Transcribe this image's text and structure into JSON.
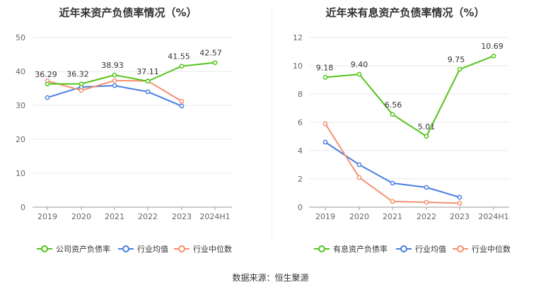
{
  "source_text": "数据来源：恒生聚源",
  "chart_data": [
    {
      "type": "line",
      "title": "近年来资产负债率情况（%）",
      "categories": [
        "2019",
        "2020",
        "2021",
        "2022",
        "2023",
        "2024H1"
      ],
      "ylim": [
        0,
        50
      ],
      "yticks": [
        "0",
        "10",
        "20",
        "30",
        "40",
        "50"
      ],
      "grid": true,
      "legend_position": "bottom",
      "series": [
        {
          "name": "公司资产负债率",
          "color": "#52c41a",
          "values": [
            36.29,
            36.32,
            38.93,
            37.11,
            41.55,
            42.57
          ],
          "labels": [
            "36.29",
            "36.32",
            "38.93",
            "37.11",
            "41.55",
            "42.57"
          ]
        },
        {
          "name": "行业均值",
          "color": "#4a7fe0",
          "values": [
            32.3,
            35.4,
            35.8,
            34.0,
            29.8,
            null
          ]
        },
        {
          "name": "行业中位数",
          "color": "#f4906f",
          "values": [
            37.2,
            34.4,
            37.3,
            37.2,
            31.2,
            null
          ]
        }
      ]
    },
    {
      "type": "line",
      "title": "近年来有息资产负债率情况（%）",
      "categories": [
        "2019",
        "2020",
        "2021",
        "2022",
        "2023",
        "2024H1"
      ],
      "ylim": [
        0,
        12
      ],
      "yticks": [
        "0",
        "2",
        "4",
        "6",
        "8",
        "10",
        "12"
      ],
      "grid": true,
      "legend_position": "bottom",
      "series": [
        {
          "name": "有息资产负债率",
          "color": "#52c41a",
          "values": [
            9.18,
            9.4,
            6.56,
            5.01,
            9.75,
            10.69
          ],
          "labels": [
            "9.18",
            "9.40",
            "6.56",
            "5.01",
            "9.75",
            "10.69"
          ]
        },
        {
          "name": "行业均值",
          "color": "#4a7fe0",
          "values": [
            4.6,
            3.0,
            1.7,
            1.4,
            0.7,
            null
          ]
        },
        {
          "name": "行业中位数",
          "color": "#f4906f",
          "values": [
            5.9,
            2.1,
            0.4,
            0.35,
            0.28,
            null
          ]
        }
      ]
    }
  ]
}
